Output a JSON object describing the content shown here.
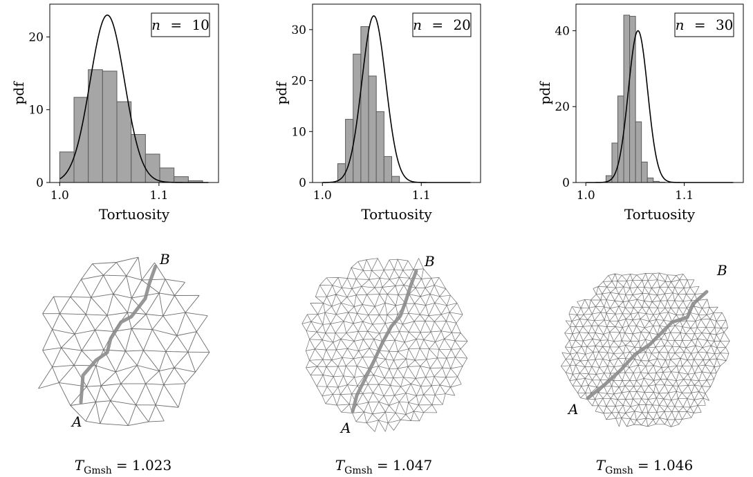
{
  "chart_data": [
    {
      "type": "bar",
      "legend": {
        "var": "n",
        "eq": "=",
        "value": "10"
      },
      "xlabel": "Tortuosity",
      "ylabel": "pdf",
      "xlim": [
        0.99,
        1.16
      ],
      "ylim": [
        0,
        24.5
      ],
      "xticks": [
        {
          "v": 1.0,
          "label": "1.0"
        },
        {
          "v": 1.1,
          "label": "1.1"
        }
      ],
      "yticks": [
        {
          "v": 0,
          "label": "0"
        },
        {
          "v": 10,
          "label": "10"
        },
        {
          "v": 20,
          "label": "20"
        }
      ],
      "histogram": {
        "edges": [
          1.0,
          1.0144,
          1.0288,
          1.0432,
          1.0576,
          1.072,
          1.0864,
          1.1008,
          1.1152,
          1.1296,
          1.144
        ],
        "density": [
          4.2,
          11.7,
          15.5,
          15.3,
          11.1,
          6.6,
          3.9,
          2.0,
          0.8,
          0.25
        ]
      },
      "pdf_curve": {
        "mean": 1.048,
        "peak": 23.0,
        "sigma": 0.0173
      }
    },
    {
      "type": "bar",
      "legend": {
        "var": "n",
        "eq": "=",
        "value": "20"
      },
      "xlabel": "Tortuosity",
      "ylabel": "pdf",
      "xlim": [
        0.99,
        1.16
      ],
      "ylim": [
        0,
        35.0
      ],
      "xticks": [
        {
          "v": 1.0,
          "label": "1.0"
        },
        {
          "v": 1.1,
          "label": "1.1"
        }
      ],
      "yticks": [
        {
          "v": 0,
          "label": "0"
        },
        {
          "v": 10,
          "label": "10"
        },
        {
          "v": 20,
          "label": "20"
        },
        {
          "v": 30,
          "label": "30"
        }
      ],
      "histogram": {
        "edges": [
          1.0155,
          1.0233,
          1.0311,
          1.0389,
          1.0467,
          1.0545,
          1.0623,
          1.0701,
          1.0779
        ],
        "density": [
          3.7,
          12.4,
          25.2,
          30.6,
          20.9,
          13.9,
          5.1,
          1.2
        ]
      },
      "pdf_curve": {
        "mean": 1.052,
        "peak": 32.7,
        "sigma": 0.0121
      }
    },
    {
      "type": "bar",
      "legend": {
        "var": "n",
        "eq": "=",
        "value": "30"
      },
      "xlabel": "Tortuosity",
      "ylabel": "pdf",
      "xlim": [
        0.99,
        1.16
      ],
      "ylim": [
        0,
        47.0
      ],
      "xticks": [
        {
          "v": 1.0,
          "label": "1.0"
        },
        {
          "v": 1.1,
          "label": "1.1"
        }
      ],
      "yticks": [
        {
          "v": 0,
          "label": "0"
        },
        {
          "v": 20,
          "label": "20"
        },
        {
          "v": 40,
          "label": "40"
        }
      ],
      "histogram": {
        "edges": [
          1.0205,
          1.0265,
          1.0325,
          1.0385,
          1.0445,
          1.0505,
          1.0565,
          1.0625,
          1.0685,
          1.0745,
          1.0805
        ],
        "density": [
          1.8,
          10.4,
          22.8,
          44.1,
          43.8,
          16.0,
          5.4,
          1.2,
          0.3,
          0.1
        ]
      },
      "pdf_curve": {
        "mean": 1.053,
        "peak": 40.0,
        "sigma": 0.0098
      }
    }
  ],
  "meshes": [
    {
      "point_a": "A",
      "point_b": "B",
      "caption": {
        "symbol": "T",
        "subscript": "Gmsh",
        "value": "= 1.023"
      }
    },
    {
      "point_a": "A",
      "point_b": "B",
      "caption": {
        "symbol": "T",
        "subscript": "Gmsh",
        "value": "= 1.047"
      }
    },
    {
      "point_a": "A",
      "point_b": "B",
      "caption": {
        "symbol": "T",
        "subscript": "Gmsh",
        "value": "= 1.046"
      }
    }
  ],
  "colors": {
    "bar_fill": "#a6a6a6",
    "bar_stroke": "#5a5a5a",
    "curve": "#000000",
    "mesh_edge": "#6b6b6b",
    "path": "#8c8c8c"
  }
}
